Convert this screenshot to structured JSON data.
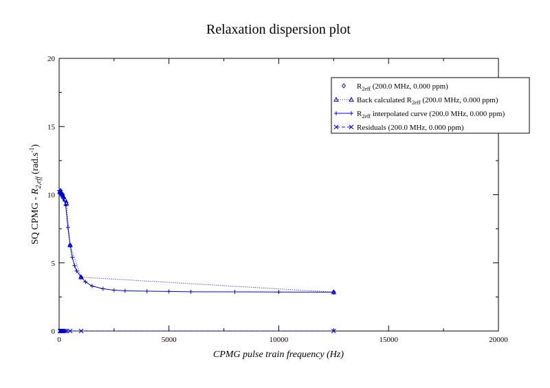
{
  "chart_data": {
    "type": "scatter",
    "title": "Relaxation dispersion plot",
    "xlabel": "CPMG pulse train frequency (Hz)",
    "ylabel": {
      "prefix": "SQ CPMG - ",
      "symbol": "R",
      "symbol_sub": "2,eff",
      "unit_open": " (rad.s",
      "unit_sup": "-1",
      "unit_close": ")"
    },
    "xlim": [
      0,
      20000
    ],
    "ylim": [
      0,
      20
    ],
    "x_ticks": [
      0,
      5000,
      10000,
      15000,
      20000
    ],
    "y_ticks": [
      0,
      5,
      10,
      15,
      20
    ],
    "x_tick_labels": [
      "0",
      "5000",
      "10000",
      "15000",
      "20000"
    ],
    "y_tick_labels": [
      "0",
      "5",
      "10",
      "15",
      "20"
    ],
    "grid": false,
    "legend_position": "top-right",
    "series": [
      {
        "key": "r2eff",
        "legend": {
          "pre": "R",
          "sub": "2eff",
          "post": " (200.0 MHz, 0.000 ppm)"
        },
        "marker": "diamond",
        "line": "none",
        "color": "#0000cc",
        "x": [
          33.3,
          66.7,
          100,
          133.3,
          166.7,
          200,
          266.7,
          333.3,
          500,
          1000,
          12500
        ],
        "y": [
          10.2,
          10.3,
          10.1,
          10.0,
          10.0,
          9.75,
          9.6,
          9.4,
          6.3,
          3.95,
          2.85
        ]
      },
      {
        "key": "back_calculated",
        "legend": {
          "pre": "Back calculated R",
          "sub": "2eff",
          "post": " (200.0 MHz, 0.000 ppm)"
        },
        "marker": "triangle",
        "line": "dotted",
        "color": "#0000cc",
        "x": [
          33.3,
          66.7,
          100,
          133.3,
          166.7,
          200,
          266.7,
          333.3,
          500,
          1000,
          12500
        ],
        "y": [
          10.2,
          10.2,
          10.15,
          10.05,
          9.95,
          9.85,
          9.65,
          9.35,
          6.3,
          3.95,
          2.85
        ]
      },
      {
        "key": "interpolated",
        "legend": {
          "pre": "R",
          "sub": "2eff",
          "post": " interpolated curve (200.0 MHz, 0.000 ppm)"
        },
        "marker": "plus",
        "line": "solid",
        "color": "#0000cc",
        "x": [
          0,
          100,
          200,
          300,
          400,
          500,
          600,
          700,
          800,
          1000,
          1200,
          1500,
          2000,
          2500,
          3000,
          4000,
          5000,
          6000,
          8000,
          10000,
          12500
        ],
        "y": [
          10.3,
          10.15,
          9.8,
          9.2,
          7.6,
          6.3,
          5.4,
          4.8,
          4.4,
          3.95,
          3.6,
          3.3,
          3.1,
          3.0,
          2.95,
          2.92,
          2.9,
          2.88,
          2.87,
          2.86,
          2.85
        ]
      },
      {
        "key": "residuals",
        "legend": {
          "pre": "Residuals (200.0 MHz, 0.000 ppm)",
          "sub": "",
          "post": ""
        },
        "marker": "cross",
        "line": "dashed",
        "color": "#0000cc",
        "x": [
          33.3,
          66.7,
          100,
          133.3,
          166.7,
          200,
          266.7,
          333.3,
          500,
          1000,
          12500
        ],
        "y": [
          0,
          0,
          0,
          0,
          0,
          0,
          0,
          0,
          0,
          0,
          0
        ]
      }
    ]
  }
}
